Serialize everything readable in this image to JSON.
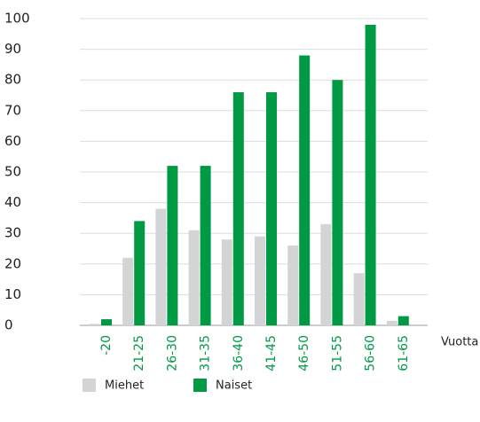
{
  "chart_data": {
    "type": "bar",
    "categories": [
      "-20",
      "21-25",
      "26-30",
      "31-35",
      "36-40",
      "41-45",
      "46-50",
      "51-55",
      "56-60",
      "61-65"
    ],
    "series": [
      {
        "name": "Miehet",
        "color": "#d3d4d5",
        "values": [
          0.5,
          22,
          38,
          31,
          28,
          29,
          26,
          33,
          17,
          1.5
        ]
      },
      {
        "name": "Naiset",
        "color": "#009a44",
        "values": [
          2,
          34,
          52,
          52,
          76,
          76,
          88,
          80,
          98,
          3
        ]
      }
    ],
    "x_label": "Vuotta",
    "ylim": [
      0,
      100
    ],
    "yticks": [
      0,
      10,
      20,
      30,
      40,
      50,
      60,
      70,
      80,
      90,
      100
    ],
    "grid": true
  }
}
